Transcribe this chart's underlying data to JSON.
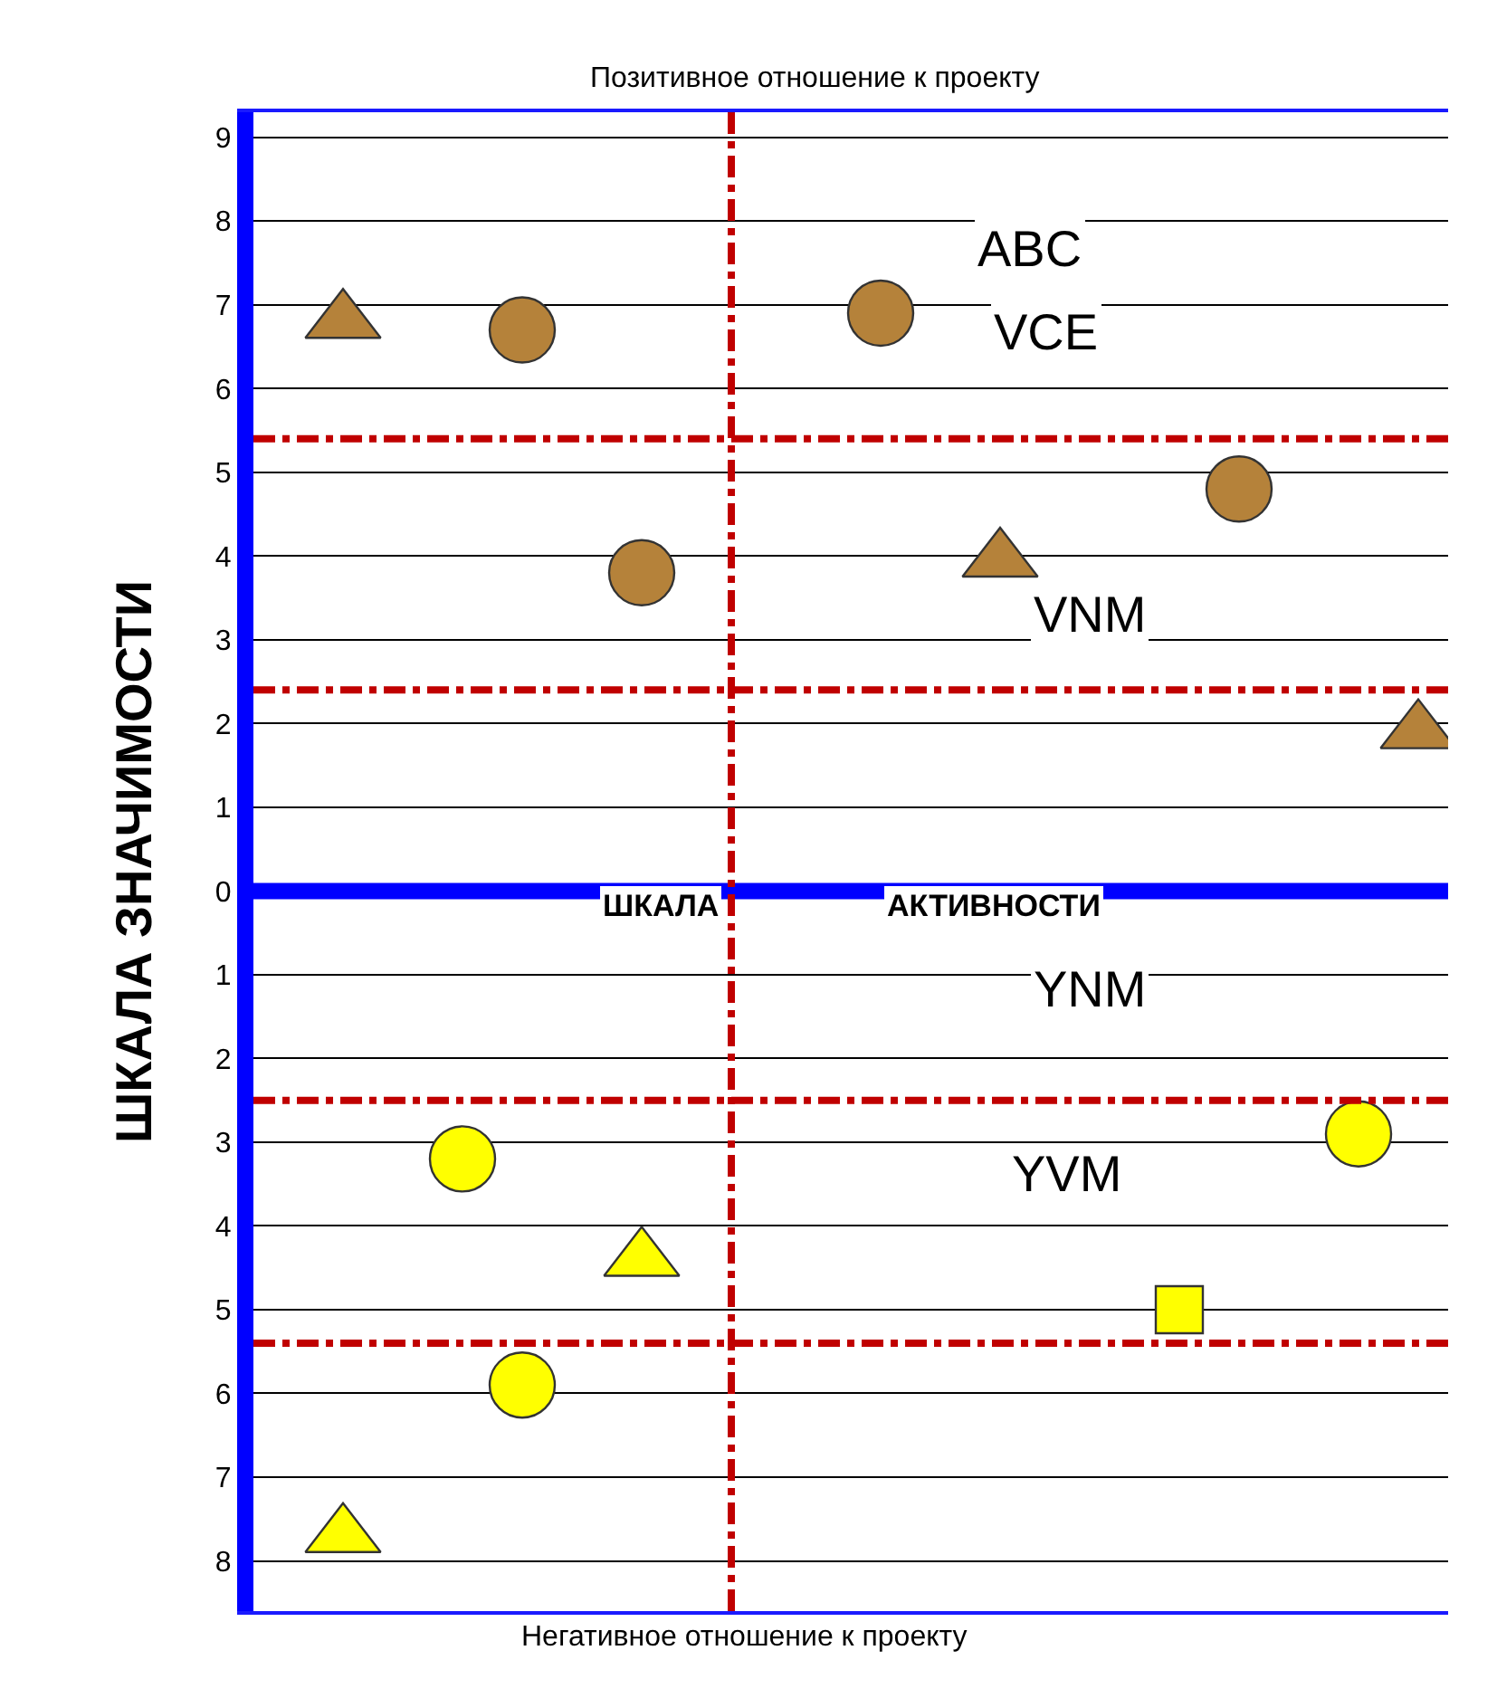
{
  "chart_data": {
    "type": "scatter",
    "ylabel": "ШКАЛА ЗНАЧИМОСТИ",
    "annotations": [
      "Позитивное отношение к проекту",
      "Негативное отношение к проекту",
      "ШКАЛА",
      "АКТИВНОСТИ",
      "ABC",
      "VCE",
      "VNM",
      "YNM",
      "YVM"
    ],
    "categories": [
      null,
      null,
      null,
      null,
      null,
      null,
      null,
      null,
      null,
      null,
      null,
      null,
      null,
      null,
      null,
      null,
      null,
      null,
      null,
      null
    ],
    "series": [
      {
        "color": "#b5823a",
        "marker": "triangle",
        "values": [
          null,
          6.8,
          null,
          null,
          null,
          null,
          null,
          null,
          null,
          null,
          null,
          null,
          3.95,
          null,
          null,
          null,
          null,
          null,
          null,
          1.9
        ]
      },
      {
        "color": "#b5823a",
        "marker": "circle",
        "values": [
          null,
          null,
          null,
          null,
          6.7,
          null,
          3.8,
          null,
          null,
          null,
          6.9,
          null,
          null,
          null,
          null,
          null,
          4.8,
          null,
          null,
          null
        ]
      },
      {
        "color": "#ffff00",
        "marker": "triangle",
        "values": [
          null,
          -7.7,
          null,
          null,
          null,
          null,
          -4.4,
          null,
          null,
          null,
          null,
          null,
          null,
          null,
          null,
          null,
          null,
          null,
          null,
          null
        ]
      },
      {
        "color": "#ffff00",
        "marker": "circle",
        "values": [
          null,
          null,
          null,
          -3.2,
          -5.9,
          null,
          null,
          null,
          null,
          null,
          null,
          null,
          null,
          null,
          null,
          null,
          null,
          null,
          -2.9,
          null
        ]
      },
      {
        "color": "#ffff00",
        "marker": "square",
        "values": [
          null,
          null,
          null,
          null,
          null,
          null,
          null,
          null,
          null,
          null,
          null,
          null,
          null,
          null,
          null,
          -5.0,
          null,
          null,
          null,
          null
        ]
      }
    ],
    "ylim": [
      -8.6,
      9.3
    ],
    "yticks": [
      9,
      8,
      7,
      6,
      5,
      4,
      3,
      2,
      1,
      0,
      {
        "value": -1,
        "label": "1"
      },
      {
        "value": -2,
        "label": "2"
      },
      {
        "value": -3,
        "label": "3"
      },
      {
        "value": -4,
        "label": "4"
      },
      {
        "value": -5,
        "label": "5"
      },
      {
        "value": -6,
        "label": "6"
      },
      {
        "value": -7,
        "label": "7"
      },
      {
        "value": -8,
        "label": "8"
      }
    ],
    "ref_lines": [
      {
        "axis": "y",
        "value": 5.4,
        "color": "#c00000",
        "line_style": "dashed"
      },
      {
        "axis": "y",
        "value": 2.4,
        "color": "#c00000",
        "line_style": "dashed"
      },
      {
        "axis": "y",
        "value": -2.5,
        "color": "#c00000",
        "line_style": "dashed"
      },
      {
        "axis": "y",
        "value": -5.4,
        "color": "#c00000",
        "line_style": "dashed"
      },
      {
        "axis": "y",
        "value": 0,
        "color": "#0000ff",
        "line_style": "solid"
      }
    ],
    "grid": true,
    "tick_labels": "y"
  }
}
